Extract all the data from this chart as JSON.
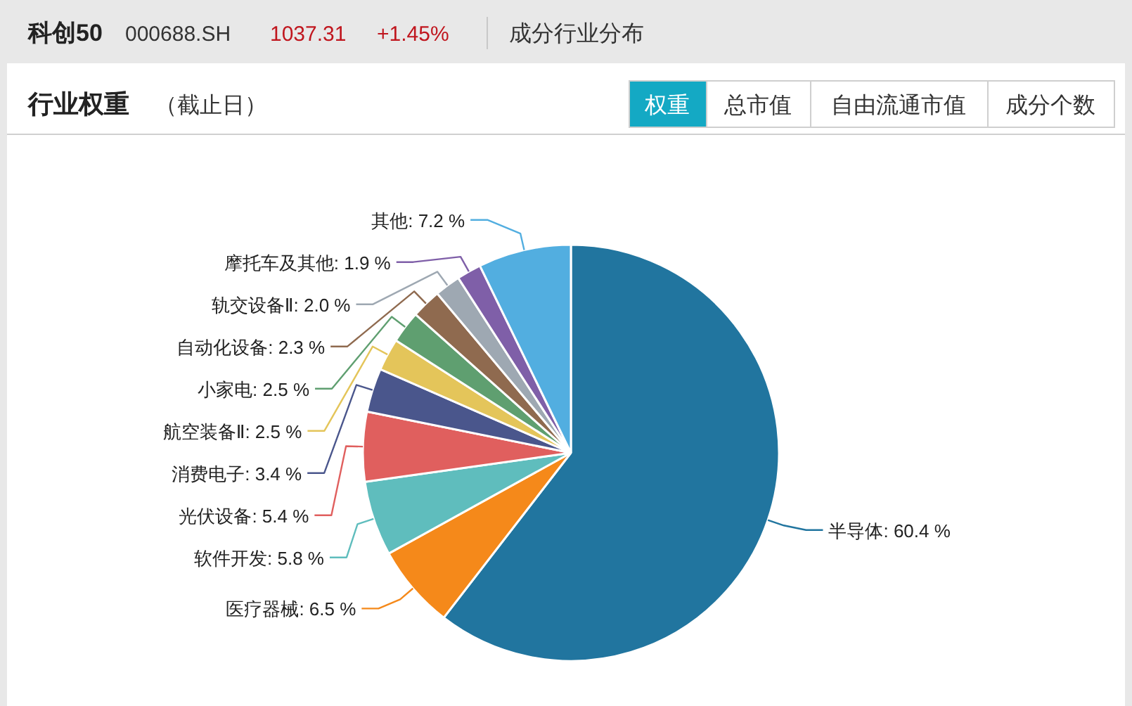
{
  "chart_data": {
    "type": "pie",
    "title": "行业权重",
    "subtitle": "（截止日）",
    "annotations": [
      "科创50",
      "000688.SH",
      "1037.31",
      "+1.45%",
      "成分行业分布",
      "权重",
      "总市值",
      "自由流通市值",
      "成分个数"
    ],
    "categories": [
      "半导体",
      "医疗器械",
      "软件开发",
      "光伏设备",
      "消费电子",
      "航空装备Ⅱ",
      "小家电",
      "自动化设备",
      "轨交设备Ⅱ",
      "摩托车及其他",
      "其他"
    ],
    "values": [
      60.4,
      6.5,
      5.8,
      5.4,
      3.4,
      2.5,
      2.5,
      2.3,
      2.0,
      1.9,
      7.2
    ],
    "value_labels": [
      "60.4 %",
      "6.5 %",
      "5.8 %",
      "5.4 %",
      "3.4 %",
      "2.5 %",
      "2.5 %",
      "2.3 %",
      "2.0 %",
      "1.9 %",
      "7.2 %"
    ],
    "colors": [
      "#21759f",
      "#f5891a",
      "#5fbdbd",
      "#e05f5e",
      "#4a568c",
      "#e4c55a",
      "#5f9f70",
      "#8f6a4f",
      "#9ea8b2",
      "#7f5fa8",
      "#52aee0"
    ]
  }
}
